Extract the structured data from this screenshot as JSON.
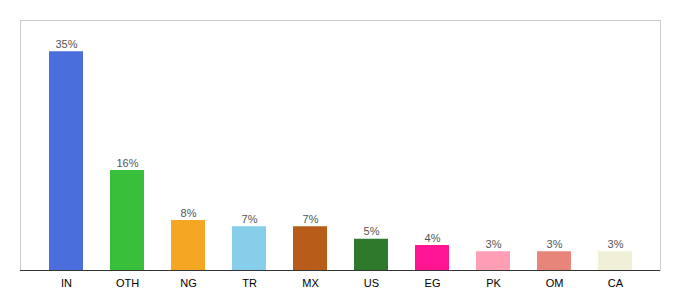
{
  "chart_data": {
    "type": "bar",
    "categories": [
      "IN",
      "OTH",
      "NG",
      "TR",
      "MX",
      "US",
      "EG",
      "PK",
      "OM",
      "CA"
    ],
    "values": [
      35,
      16,
      8,
      7,
      7,
      5,
      4,
      3,
      3,
      3
    ],
    "value_labels": [
      "35%",
      "16%",
      "8%",
      "7%",
      "7%",
      "5%",
      "4%",
      "3%",
      "3%",
      "3%"
    ],
    "colors": [
      "#4a6fdc",
      "#3abf3a",
      "#f5a623",
      "#87ceeb",
      "#b85c1a",
      "#2d7a2d",
      "#ff1493",
      "#ff9eb5",
      "#e8857a",
      "#f0f0d8"
    ],
    "ylim": [
      0,
      40
    ],
    "data_labels": true,
    "tick_labels": "x",
    "grid": false
  }
}
